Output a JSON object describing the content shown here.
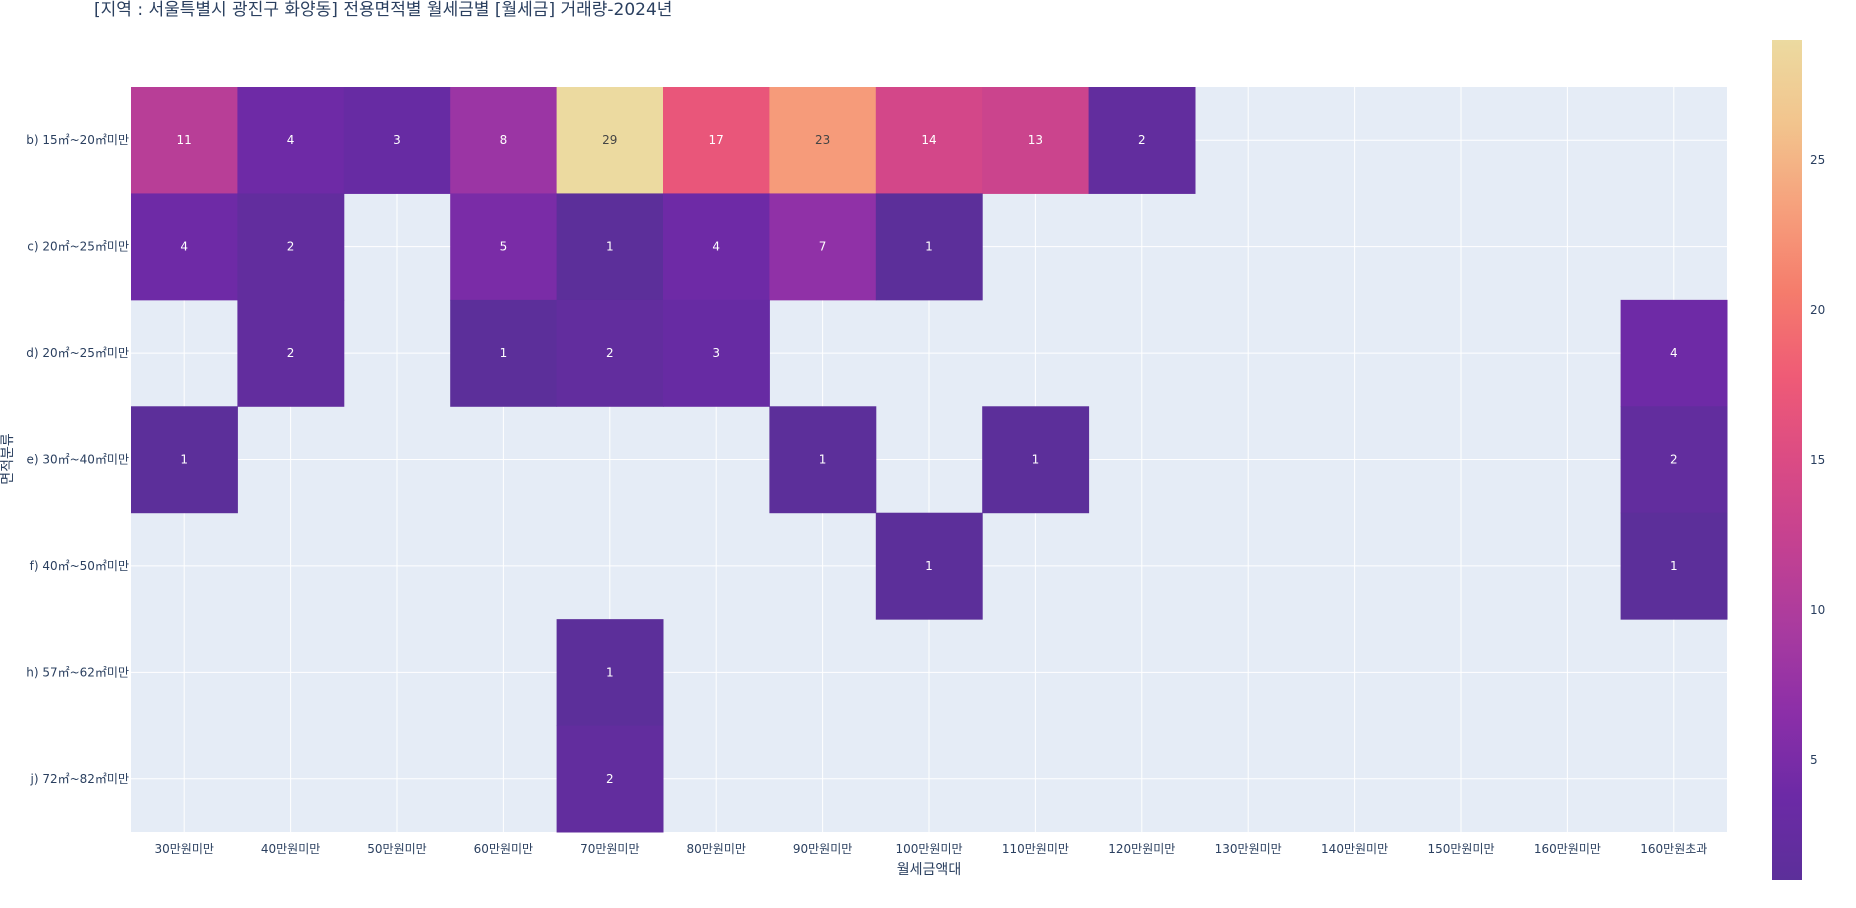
{
  "chart_data": {
    "type": "heatmap",
    "title": "[지역 : 서울특별시 광진구 화양동] 전용면적별 월세금별 [월세금] 거래량-2024년",
    "xlabel": "월세금액대",
    "ylabel": "면적분류",
    "x_categories": [
      "30만원미만",
      "40만원미만",
      "50만원미만",
      "60만원미만",
      "70만원미만",
      "80만원미만",
      "90만원미만",
      "100만원미만",
      "110만원미만",
      "120만원미만",
      "130만원미만",
      "140만원미만",
      "150만원미만",
      "160만원미만",
      "160만원초과"
    ],
    "y_categories": [
      "b) 15㎡~20㎡미만",
      "c) 20㎡~25㎡미만",
      "d) 20㎡~25㎡미만",
      "e) 30㎡~40㎡미만",
      "f) 40㎡~50㎡미만",
      "h) 57㎡~62㎡미만",
      "j) 72㎡~82㎡미만"
    ],
    "z": [
      [
        11,
        4,
        3,
        8,
        29,
        17,
        23,
        14,
        13,
        2,
        null,
        null,
        null,
        null,
        null
      ],
      [
        4,
        2,
        null,
        5,
        1,
        4,
        7,
        1,
        null,
        null,
        null,
        null,
        null,
        null,
        null
      ],
      [
        null,
        2,
        null,
        1,
        2,
        3,
        null,
        null,
        null,
        null,
        null,
        null,
        null,
        null,
        4
      ],
      [
        1,
        null,
        null,
        null,
        null,
        null,
        1,
        null,
        1,
        null,
        null,
        null,
        null,
        null,
        2
      ],
      [
        null,
        null,
        null,
        null,
        null,
        null,
        null,
        1,
        null,
        null,
        null,
        null,
        null,
        null,
        1
      ],
      [
        null,
        null,
        null,
        null,
        1,
        null,
        null,
        null,
        null,
        null,
        null,
        null,
        null,
        null,
        null
      ],
      [
        null,
        null,
        null,
        null,
        2,
        null,
        null,
        null,
        null,
        null,
        null,
        null,
        null,
        null,
        null
      ]
    ],
    "zmin": 1,
    "zmax": 29,
    "colorscale": [
      "#5c2f9a",
      "#6c2aa6",
      "#8c2fa8",
      "#a93b9f",
      "#c44191",
      "#db4b84",
      "#ef5b76",
      "#f57c6c",
      "#f6a07c",
      "#f2c48d",
      "#ecdaa0"
    ],
    "colorbar_ticks": [
      "5",
      "10",
      "15",
      "20",
      "25"
    ],
    "background_color": "#e5ecf6",
    "grid": true
  }
}
